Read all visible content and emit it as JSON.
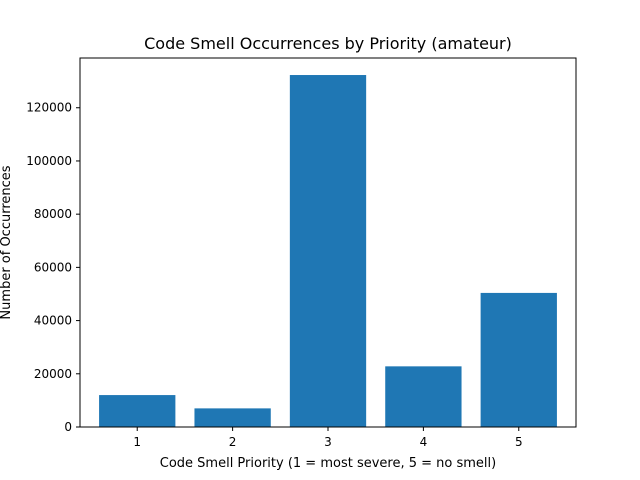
{
  "chart_data": {
    "type": "bar",
    "title": "Code Smell Occurrences by Priority (amateur)",
    "xlabel": "Code Smell Priority (1 = most severe, 5 = no smell)",
    "ylabel": "Number of Occurrences",
    "categories": [
      "1",
      "2",
      "3",
      "4",
      "5"
    ],
    "values": [
      12000,
      7000,
      132300,
      22800,
      50400
    ],
    "ylim": [
      0,
      138700
    ],
    "yticks": [
      0,
      20000,
      40000,
      60000,
      80000,
      100000,
      120000
    ],
    "ytick_labels": [
      "0",
      "20000",
      "40000",
      "60000",
      "80000",
      "100000",
      "120000"
    ],
    "grid": false,
    "legend": "none",
    "bar_color": "#1f77b4"
  }
}
